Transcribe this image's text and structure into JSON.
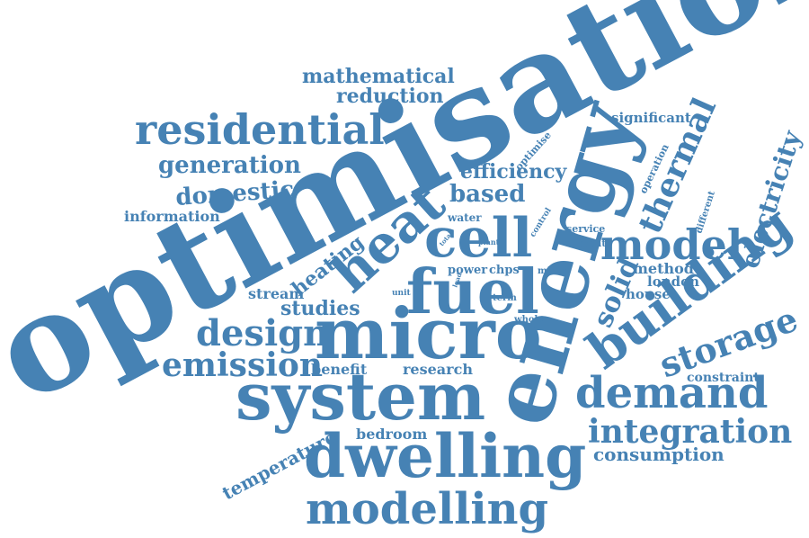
{
  "colors": {
    "word": "#4682b4",
    "background": "#ffffff"
  },
  "words": [
    "optimisation",
    "energy",
    "micro",
    "system",
    "fuel",
    "cell",
    "heat",
    "building",
    "dwelling",
    "modelling",
    "demand",
    "residential",
    "model",
    "design",
    "emission",
    "storage",
    "thermal",
    "integration",
    "solid",
    "electricity",
    "generation",
    "domestic",
    "based",
    "efficiency",
    "mathematical",
    "reduction",
    "heating",
    "studies",
    "consumption",
    "temperature",
    "bedroom",
    "research",
    "benefit",
    "stream",
    "information",
    "significant",
    "method",
    "london",
    "house",
    "constraint",
    "power",
    "chps",
    "water",
    "operation",
    "optimise",
    "different",
    "service",
    "current",
    "minlp",
    "term",
    "whole",
    "control",
    "plant",
    "total",
    "unit",
    "load"
  ]
}
